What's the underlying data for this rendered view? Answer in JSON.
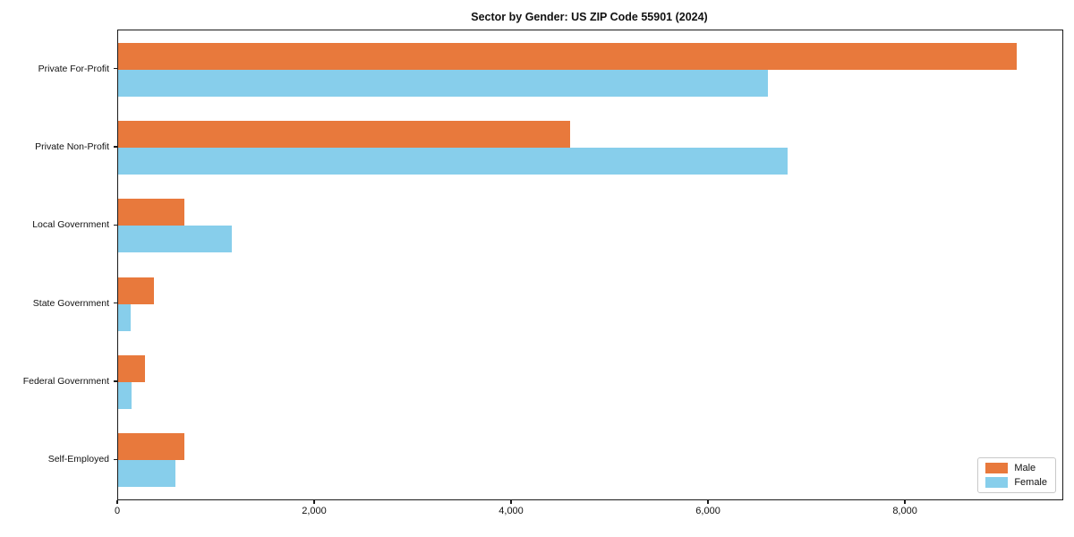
{
  "title": "Sector by Gender: US ZIP Code 55901 (2024)",
  "chart_data": {
    "type": "bar",
    "orientation": "horizontal",
    "title": "Sector by Gender: US ZIP Code 55901 (2024)",
    "categories": [
      "Private For-Profit",
      "Private Non-Profit",
      "Local Government",
      "State Government",
      "Federal Government",
      "Self-Employed"
    ],
    "series": [
      {
        "name": "Male",
        "color": "#E8793C",
        "values": [
          9130,
          4590,
          675,
          360,
          270,
          670
        ]
      },
      {
        "name": "Female",
        "color": "#87CEEB",
        "values": [
          6600,
          6800,
          1150,
          125,
          140,
          580
        ]
      }
    ],
    "xlim": [
      0,
      9590
    ],
    "xticks": [
      0,
      2000,
      4000,
      6000,
      8000
    ],
    "xtick_labels": [
      "0",
      "2,000",
      "4,000",
      "6,000",
      "8,000"
    ],
    "xlabel": "",
    "ylabel": "",
    "grid": false,
    "legend": {
      "position": "lower right",
      "entries": [
        {
          "label": "Male",
          "color": "#E8793C"
        },
        {
          "label": "Female",
          "color": "#87CEEB"
        }
      ]
    }
  }
}
